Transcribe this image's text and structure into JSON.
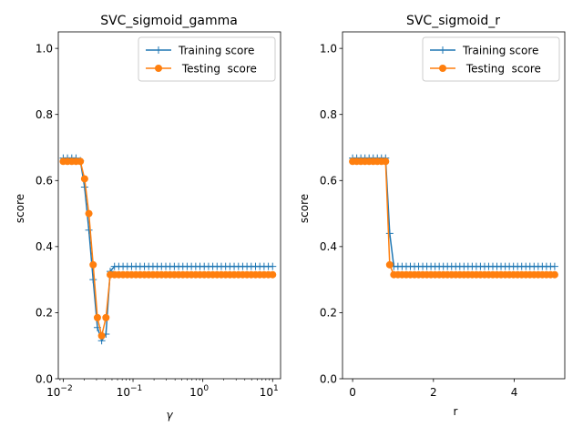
{
  "chart_data": [
    {
      "type": "line",
      "title": "SVC_sigmoid_gamma",
      "xlabel": "γ",
      "ylabel": "score",
      "xscale": "log",
      "xlim": [
        0.0085,
        13
      ],
      "ylim": [
        0,
        1.05
      ],
      "xticks": [
        {
          "value": 0.01,
          "base": "10",
          "exp": "−2"
        },
        {
          "value": 0.1,
          "base": "10",
          "exp": "−1"
        },
        {
          "value": 1,
          "base": "10",
          "exp": "0"
        },
        {
          "value": 10,
          "base": "10",
          "exp": "1"
        }
      ],
      "yticks": [
        "0.0",
        "0.2",
        "0.4",
        "0.6",
        "0.8",
        "1.0"
      ],
      "legend": {
        "position": "top-right"
      },
      "grid": false,
      "series": [
        {
          "name": "Training score",
          "color": "#1f77b4",
          "marker": "plus",
          "x": [
            0.01,
            0.01151,
            0.01326,
            0.01526,
            0.01758,
            0.02024,
            0.0233,
            0.02683,
            0.03089,
            0.03556,
            0.04095,
            0.04715,
            0.05429,
            0.06251,
            0.07197,
            0.08286,
            0.0954,
            0.10985,
            0.12648,
            0.14563,
            0.16768,
            0.19307,
            0.2223,
            0.25595,
            0.29471,
            0.33932,
            0.3907,
            0.44984,
            0.51795,
            0.59636,
            0.68665,
            0.7906,
            0.9103,
            1.04811,
            1.20679,
            1.3895,
            1.59986,
            1.84207,
            2.12095,
            2.44205,
            2.81177,
            3.23746,
            3.72759,
            4.29193,
            4.94171,
            5.68987,
            6.55129,
            7.54312,
            8.68511,
            10.0
          ],
          "values": [
            0.668,
            0.668,
            0.668,
            0.668,
            0.66,
            0.58,
            0.45,
            0.3,
            0.155,
            0.115,
            0.135,
            0.325,
            0.34,
            0.34,
            0.34,
            0.34,
            0.34,
            0.34,
            0.34,
            0.34,
            0.34,
            0.34,
            0.34,
            0.34,
            0.34,
            0.34,
            0.34,
            0.34,
            0.34,
            0.34,
            0.34,
            0.34,
            0.34,
            0.34,
            0.34,
            0.34,
            0.34,
            0.34,
            0.34,
            0.34,
            0.34,
            0.34,
            0.34,
            0.34,
            0.34,
            0.34,
            0.34,
            0.34,
            0.34,
            0.34
          ]
        },
        {
          "name": " Testing  score",
          "color": "#ff7f0e",
          "marker": "circle",
          "x": [
            0.01,
            0.01151,
            0.01326,
            0.01526,
            0.01758,
            0.02024,
            0.0233,
            0.02683,
            0.03089,
            0.03556,
            0.04095,
            0.04715,
            0.05429,
            0.06251,
            0.07197,
            0.08286,
            0.0954,
            0.10985,
            0.12648,
            0.14563,
            0.16768,
            0.19307,
            0.2223,
            0.25595,
            0.29471,
            0.33932,
            0.3907,
            0.44984,
            0.51795,
            0.59636,
            0.68665,
            0.7906,
            0.9103,
            1.04811,
            1.20679,
            1.3895,
            1.59986,
            1.84207,
            2.12095,
            2.44205,
            2.81177,
            3.23746,
            3.72759,
            4.29193,
            4.94171,
            5.68987,
            6.55129,
            7.54312,
            8.68511,
            10.0
          ],
          "values": [
            0.658,
            0.658,
            0.658,
            0.658,
            0.658,
            0.605,
            0.5,
            0.345,
            0.185,
            0.13,
            0.185,
            0.315,
            0.315,
            0.315,
            0.315,
            0.315,
            0.315,
            0.315,
            0.315,
            0.315,
            0.315,
            0.315,
            0.315,
            0.315,
            0.315,
            0.315,
            0.315,
            0.315,
            0.315,
            0.315,
            0.315,
            0.315,
            0.315,
            0.315,
            0.315,
            0.315,
            0.315,
            0.315,
            0.315,
            0.315,
            0.315,
            0.315,
            0.315,
            0.315,
            0.315,
            0.315,
            0.315,
            0.315,
            0.315,
            0.315
          ]
        }
      ]
    },
    {
      "type": "line",
      "title": "SVC_sigmoid_r",
      "xlabel": "r",
      "ylabel": "score",
      "xscale": "linear",
      "xlim": [
        -0.25,
        5.25
      ],
      "ylim": [
        0,
        1.05
      ],
      "xticks": [
        {
          "value": 0,
          "label": "0"
        },
        {
          "value": 2,
          "label": "2"
        },
        {
          "value": 4,
          "label": "4"
        }
      ],
      "yticks": [
        "0.0",
        "0.2",
        "0.4",
        "0.6",
        "0.8",
        "1.0"
      ],
      "legend": {
        "position": "top-right"
      },
      "grid": false,
      "series": [
        {
          "name": "Training score",
          "color": "#1f77b4",
          "marker": "plus",
          "x": [
            0.0,
            0.102,
            0.204,
            0.306,
            0.408,
            0.51,
            0.612,
            0.714,
            0.816,
            0.918,
            1.02,
            1.122,
            1.224,
            1.327,
            1.429,
            1.531,
            1.633,
            1.735,
            1.837,
            1.939,
            2.041,
            2.143,
            2.245,
            2.347,
            2.449,
            2.551,
            2.653,
            2.755,
            2.857,
            2.959,
            3.061,
            3.163,
            3.265,
            3.367,
            3.469,
            3.571,
            3.673,
            3.776,
            3.878,
            3.98,
            4.082,
            4.184,
            4.286,
            4.388,
            4.49,
            4.592,
            4.694,
            4.796,
            4.898,
            5.0
          ],
          "values": [
            0.668,
            0.668,
            0.668,
            0.668,
            0.668,
            0.668,
            0.668,
            0.668,
            0.668,
            0.44,
            0.34,
            0.34,
            0.34,
            0.34,
            0.34,
            0.34,
            0.34,
            0.34,
            0.34,
            0.34,
            0.34,
            0.34,
            0.34,
            0.34,
            0.34,
            0.34,
            0.34,
            0.34,
            0.34,
            0.34,
            0.34,
            0.34,
            0.34,
            0.34,
            0.34,
            0.34,
            0.34,
            0.34,
            0.34,
            0.34,
            0.34,
            0.34,
            0.34,
            0.34,
            0.34,
            0.34,
            0.34,
            0.34,
            0.34,
            0.34
          ]
        },
        {
          "name": " Testing  score",
          "color": "#ff7f0e",
          "marker": "circle",
          "x": [
            0.0,
            0.102,
            0.204,
            0.306,
            0.408,
            0.51,
            0.612,
            0.714,
            0.816,
            0.918,
            1.02,
            1.122,
            1.224,
            1.327,
            1.429,
            1.531,
            1.633,
            1.735,
            1.837,
            1.939,
            2.041,
            2.143,
            2.245,
            2.347,
            2.449,
            2.551,
            2.653,
            2.755,
            2.857,
            2.959,
            3.061,
            3.163,
            3.265,
            3.367,
            3.469,
            3.571,
            3.673,
            3.776,
            3.878,
            3.98,
            4.082,
            4.184,
            4.286,
            4.388,
            4.49,
            4.592,
            4.694,
            4.796,
            4.898,
            5.0
          ],
          "values": [
            0.658,
            0.658,
            0.658,
            0.658,
            0.658,
            0.658,
            0.658,
            0.658,
            0.658,
            0.345,
            0.315,
            0.315,
            0.315,
            0.315,
            0.315,
            0.315,
            0.315,
            0.315,
            0.315,
            0.315,
            0.315,
            0.315,
            0.315,
            0.315,
            0.315,
            0.315,
            0.315,
            0.315,
            0.315,
            0.315,
            0.315,
            0.315,
            0.315,
            0.315,
            0.315,
            0.315,
            0.315,
            0.315,
            0.315,
            0.315,
            0.315,
            0.315,
            0.315,
            0.315,
            0.315,
            0.315,
            0.315,
            0.315,
            0.315,
            0.315
          ]
        }
      ]
    }
  ]
}
